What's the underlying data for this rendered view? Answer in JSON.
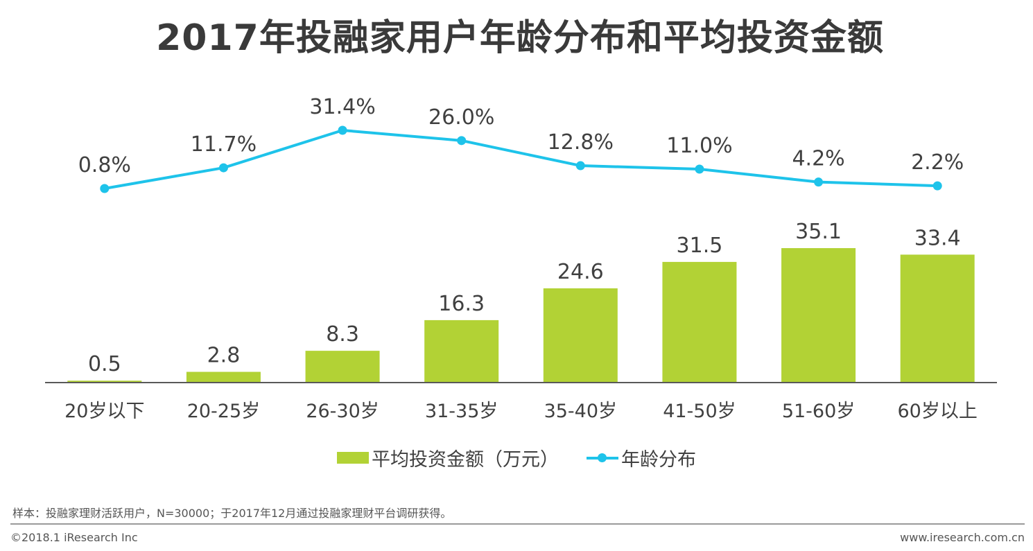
{
  "title": "2017年投融家用户年龄分布和平均投资金额",
  "chart_data": {
    "type": "bar+line",
    "categories": [
      "20岁以下",
      "20-25岁",
      "26-30岁",
      "31-35岁",
      "35-40岁",
      "41-50岁",
      "51-60岁",
      "60岁以上"
    ],
    "series": [
      {
        "name": "平均投资金额（万元）",
        "type": "bar",
        "color": "#b2d235",
        "values": [
          0.5,
          2.8,
          8.3,
          16.3,
          24.6,
          31.5,
          35.1,
          33.4
        ],
        "labels": [
          "0.5",
          "2.8",
          "8.3",
          "16.3",
          "24.6",
          "31.5",
          "35.1",
          "33.4"
        ]
      },
      {
        "name": "年龄分布",
        "type": "line",
        "color": "#1ec3ea",
        "values": [
          0.8,
          11.7,
          31.4,
          26.0,
          12.8,
          11.0,
          4.2,
          2.2
        ],
        "labels": [
          "0.8%",
          "11.7%",
          "31.4%",
          "26.0%",
          "12.8%",
          "11.0%",
          "4.2%",
          "2.2%"
        ]
      }
    ],
    "legend": [
      "平均投资金额（万元）",
      "年龄分布"
    ],
    "legend_position": "bottom"
  },
  "footer": {
    "note": "样本：投融家理财活跃用户，N=30000；于2017年12月通过投融家理财平台调研获得。",
    "copyright": "©2018.1 iResearch Inc",
    "website": "www.iresearch.com.cn"
  }
}
